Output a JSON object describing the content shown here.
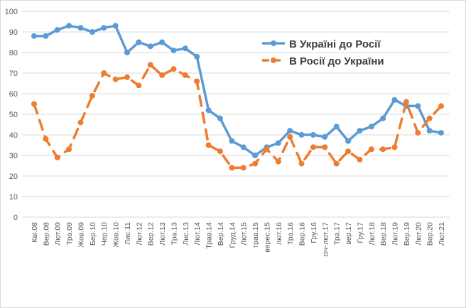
{
  "chart_data": {
    "type": "line",
    "title": "",
    "xlabel": "",
    "ylabel": "",
    "ylim": [
      0,
      100
    ],
    "yticks": [
      0,
      10,
      20,
      30,
      40,
      50,
      60,
      70,
      80,
      90,
      100
    ],
    "grid": true,
    "legend_position": "top-right",
    "categories": [
      "Кві.08",
      "Вер.08",
      "Лют.09",
      "Тра.09",
      "Жов.09",
      "Бер.10",
      "Чер.10",
      "Жов.10",
      "Лис.11",
      "Лют.12",
      "Вер.12",
      "Лют.13",
      "Тра.13",
      "Лис.13",
      "Лют.14",
      "Трав.14",
      "Вер.14",
      "Груд.14",
      "Лют.15",
      "трав.15",
      "верес.15",
      "лют.16",
      "Тра.16",
      "Вер.16",
      "Гру.16",
      "січ-лют.17",
      "Тра.17",
      "вер.17",
      "Гру.17",
      "Лют.18",
      "Вер.18",
      "Лют.19",
      "Вер.19",
      "Лют.20",
      "Вер.20",
      "Лют.21"
    ],
    "series": [
      {
        "name": "В Україні до Росії",
        "color": "#5B9BD5",
        "style": "solid",
        "values": [
          88,
          88,
          91,
          93,
          92,
          90,
          92,
          93,
          80,
          85,
          83,
          85,
          81,
          82,
          78,
          52,
          48,
          37,
          34,
          30,
          34,
          36,
          42,
          40,
          40,
          39,
          44,
          37,
          42,
          44,
          48,
          57,
          54,
          54,
          42,
          41
        ]
      },
      {
        "name": "В Росії до України",
        "color": "#ED7D31",
        "style": "dashed",
        "values": [
          55,
          38,
          29,
          33,
          46,
          59,
          70,
          67,
          68,
          64,
          74,
          69,
          72,
          69,
          66,
          35,
          32,
          24,
          24,
          26,
          33,
          27,
          39,
          26,
          34,
          34,
          26,
          32,
          28,
          33,
          33,
          34,
          56,
          41,
          48,
          54
        ]
      }
    ]
  }
}
